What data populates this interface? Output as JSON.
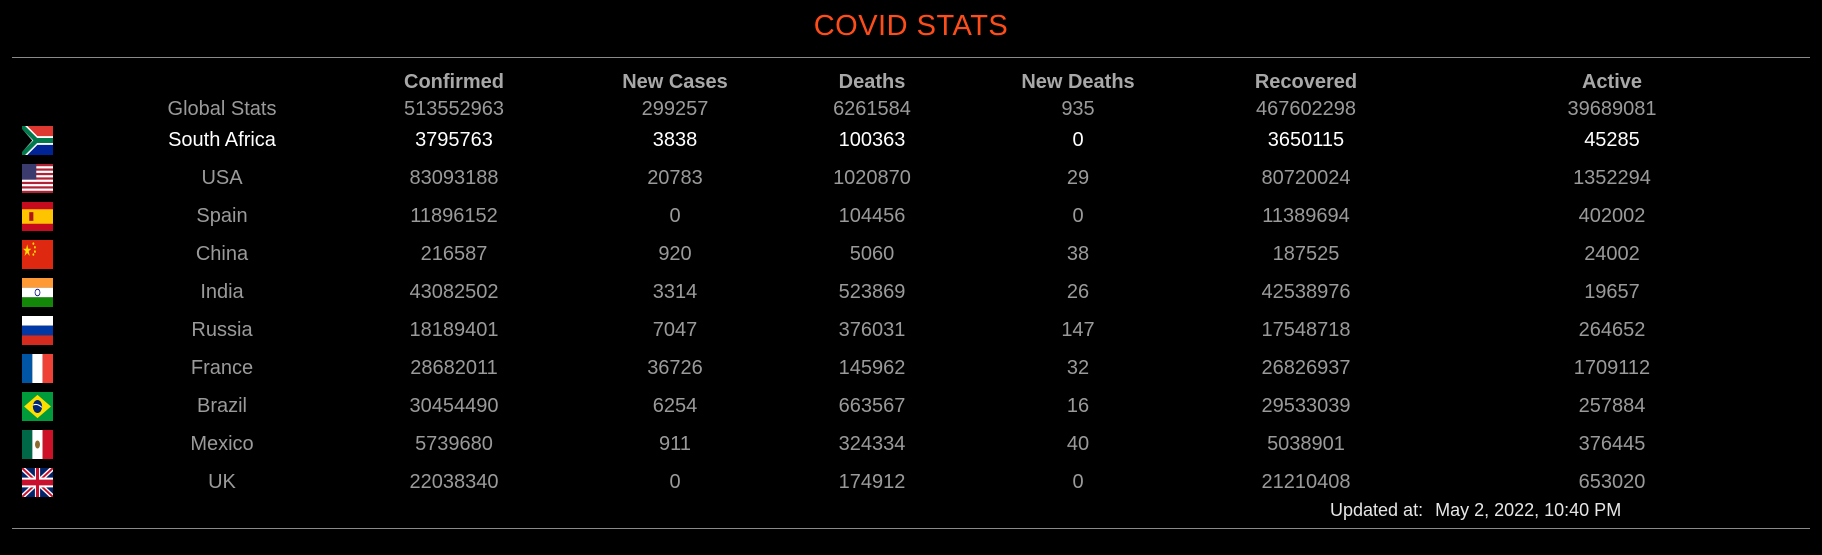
{
  "title": "COVID STATS",
  "columns": {
    "confirmed": "Confirmed",
    "new_cases": "New Cases",
    "deaths": "Deaths",
    "new_deaths": "New Deaths",
    "recovered": "Recovered",
    "active": "Active"
  },
  "global": {
    "label": "Global Stats",
    "confirmed": "513552963",
    "new_cases": "299257",
    "deaths": "6261584",
    "new_deaths": "935",
    "recovered": "467602298",
    "active": "39689081"
  },
  "countries": [
    {
      "name": "South Africa",
      "flag": "south-africa-flag-icon",
      "confirmed": "3795763",
      "new_cases": "3838",
      "deaths": "100363",
      "new_deaths": "0",
      "recovered": "3650115",
      "active": "45285"
    },
    {
      "name": "USA",
      "flag": "usa-flag-icon",
      "confirmed": "83093188",
      "new_cases": "20783",
      "deaths": "1020870",
      "new_deaths": "29",
      "recovered": "80720024",
      "active": "1352294"
    },
    {
      "name": "Spain",
      "flag": "spain-flag-icon",
      "confirmed": "11896152",
      "new_cases": "0",
      "deaths": "104456",
      "new_deaths": "0",
      "recovered": "11389694",
      "active": "402002"
    },
    {
      "name": "China",
      "flag": "china-flag-icon",
      "confirmed": "216587",
      "new_cases": "920",
      "deaths": "5060",
      "new_deaths": "38",
      "recovered": "187525",
      "active": "24002"
    },
    {
      "name": "India",
      "flag": "india-flag-icon",
      "confirmed": "43082502",
      "new_cases": "3314",
      "deaths": "523869",
      "new_deaths": "26",
      "recovered": "42538976",
      "active": "19657"
    },
    {
      "name": "Russia",
      "flag": "russia-flag-icon",
      "confirmed": "18189401",
      "new_cases": "7047",
      "deaths": "376031",
      "new_deaths": "147",
      "recovered": "17548718",
      "active": "264652"
    },
    {
      "name": "France",
      "flag": "france-flag-icon",
      "confirmed": "28682011",
      "new_cases": "36726",
      "deaths": "145962",
      "new_deaths": "32",
      "recovered": "26826937",
      "active": "1709112"
    },
    {
      "name": "Brazil",
      "flag": "brazil-flag-icon",
      "confirmed": "30454490",
      "new_cases": "6254",
      "deaths": "663567",
      "new_deaths": "16",
      "recovered": "29533039",
      "active": "257884"
    },
    {
      "name": "Mexico",
      "flag": "mexico-flag-icon",
      "confirmed": "5739680",
      "new_cases": "911",
      "deaths": "324334",
      "new_deaths": "40",
      "recovered": "5038901",
      "active": "376445"
    },
    {
      "name": "UK",
      "flag": "uk-flag-icon",
      "confirmed": "22038340",
      "new_cases": "0",
      "deaths": "174912",
      "new_deaths": "0",
      "recovered": "21210408",
      "active": "653020"
    }
  ],
  "updated": {
    "label": "Updated at:",
    "value": "May 2, 2022, 10:40 PM"
  },
  "colors": {
    "title": "#ff4d1a",
    "text": "#9a9a9a",
    "highlight_text": "#ffffff",
    "background": "#000000"
  }
}
